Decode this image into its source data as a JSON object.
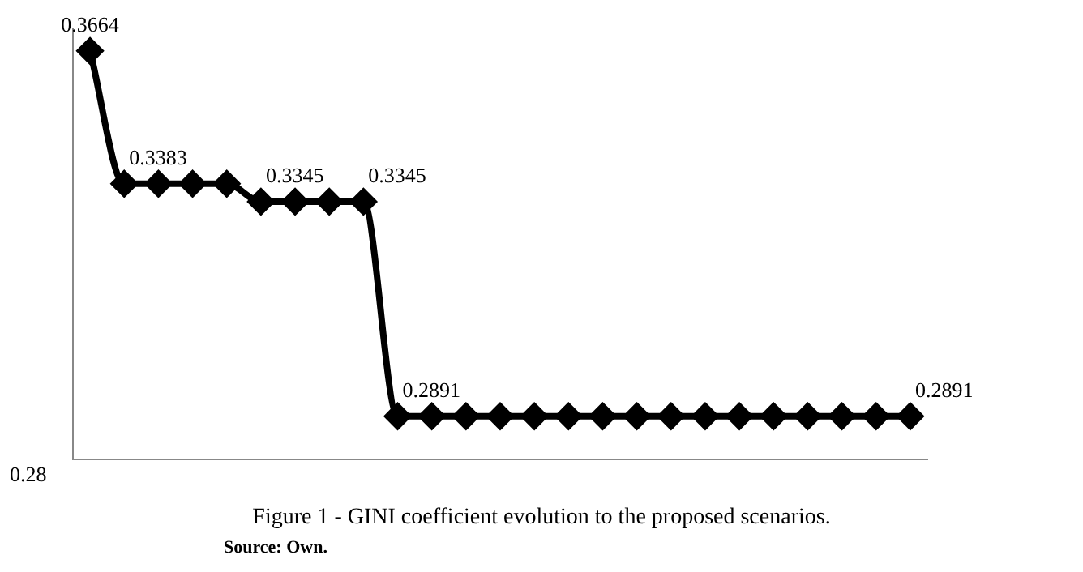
{
  "chart_data": {
    "type": "line",
    "title": "Figure 1 - GINI coefficient evolution to the proposed scenarios.",
    "annotations": [
      "Source: Own.",
      "0.28"
    ],
    "categories": [
      null,
      null,
      null,
      null,
      null,
      null,
      null,
      null,
      null,
      null,
      null,
      null,
      null,
      null,
      null,
      null,
      null,
      null,
      null,
      null,
      null,
      null,
      null,
      null,
      null
    ],
    "series": [
      {
        "color": "#000000",
        "values": [
          0.3664,
          0.3383,
          0.3383,
          0.3383,
          0.3383,
          0.3345,
          0.3345,
          0.3345,
          0.3345,
          0.2891,
          0.2891,
          0.2891,
          0.2891,
          0.2891,
          0.2891,
          0.2891,
          0.2891,
          0.2891,
          0.2891,
          0.2891,
          0.2891,
          0.2891,
          0.2891,
          0.2891,
          0.2891
        ],
        "value_labels": [
          "0.3664",
          "0.3383",
          null,
          null,
          null,
          "0.3345",
          null,
          null,
          "0.3345",
          "0.2891",
          null,
          null,
          null,
          null,
          null,
          null,
          null,
          null,
          null,
          null,
          null,
          null,
          null,
          null,
          "0.2891"
        ]
      }
    ],
    "ylim": [
      0.28,
      0.371
    ],
    "grid": false,
    "legend": false,
    "marker": "diamond",
    "line_style": "solid"
  }
}
